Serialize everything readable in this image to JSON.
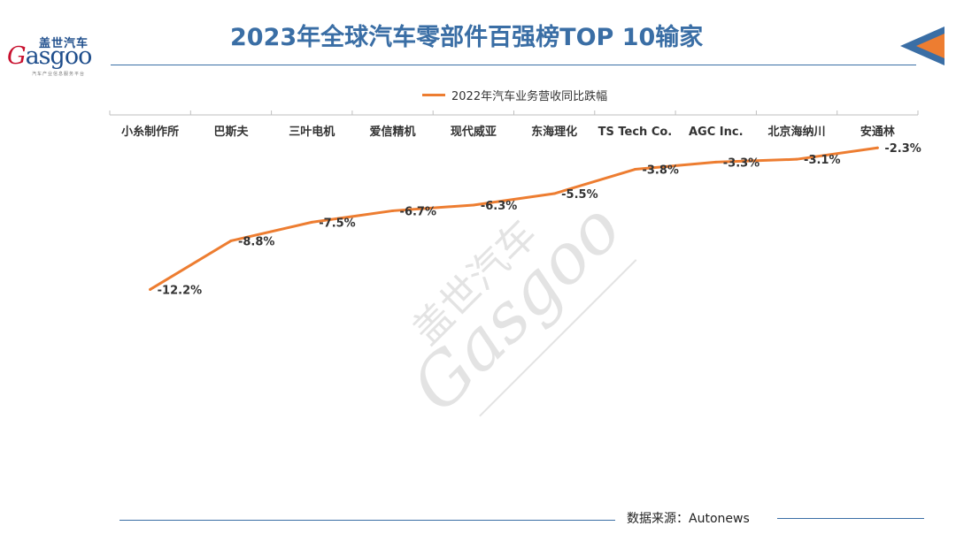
{
  "header": {
    "title": "2023年全球汽车零部件百强榜TOP 10输家",
    "logo_cn": "盖世汽车",
    "logo_en_initial": "G",
    "logo_en_rest": "asgoo",
    "logo_sub": "汽车产业信息服务平台"
  },
  "footer": {
    "source": "数据来源：Autonews"
  },
  "colors": {
    "accent": "#3a6ea5",
    "series": "#ed7d31",
    "corner_blue": "#3a6ea5",
    "corner_orange": "#ed7d31"
  },
  "chart_data": {
    "type": "line",
    "title": "",
    "xlabel": "",
    "ylabel": "",
    "x_axis_position": "top",
    "legend_position": "top",
    "grid": false,
    "categories": [
      "小糸制作所",
      "巴斯夫",
      "三叶电机",
      "爱信精机",
      "现代威亚",
      "东海理化",
      "TS Tech Co.",
      "AGC Inc.",
      "北京海纳川",
      "安通林"
    ],
    "series": [
      {
        "name": "2022年汽车业务营收同比跌幅",
        "values": [
          -12.2,
          -8.8,
          -7.5,
          -6.7,
          -6.3,
          -5.5,
          -3.8,
          -3.3,
          -3.1,
          -2.3
        ],
        "labels": [
          "-12.2%",
          "-8.8%",
          "-7.5%",
          "-6.7%",
          "-6.3%",
          "-5.5%",
          "-3.8%",
          "-3.3%",
          "-3.1%",
          "-2.3%"
        ]
      }
    ],
    "ylim": [
      -27,
      0
    ]
  }
}
